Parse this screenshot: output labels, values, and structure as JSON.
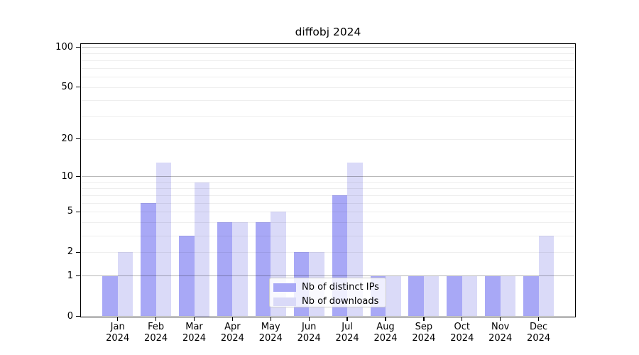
{
  "title": "diffobj 2024",
  "chart_data": {
    "type": "bar",
    "title": "diffobj 2024",
    "categories": [
      "Jan",
      "Feb",
      "Mar",
      "Apr",
      "May",
      "Jun",
      "Jul",
      "Aug",
      "Sep",
      "Oct",
      "Nov",
      "Dec"
    ],
    "year_label": "2024",
    "series": [
      {
        "name": "Nb of distinct IPs",
        "color": "#a8a8f6",
        "values": [
          1,
          6,
          3,
          4,
          4,
          2,
          7,
          1,
          1,
          1,
          1,
          1
        ]
      },
      {
        "name": "Nb of downloads",
        "color": "#dadaf8",
        "values": [
          2,
          13,
          9,
          4,
          5,
          2,
          13,
          1,
          1,
          1,
          1,
          3
        ]
      }
    ],
    "yscale": "log1p",
    "ylim": [
      0,
      100
    ],
    "y_ticks": [
      0,
      1,
      2,
      5,
      10,
      20,
      50,
      100
    ],
    "major_gridlines": [
      1,
      10,
      100
    ],
    "minor_gridlines": [
      2,
      3,
      4,
      5,
      6,
      7,
      8,
      9,
      20,
      30,
      40,
      50,
      60,
      70,
      80,
      90
    ],
    "grid": true,
    "legend_position": "lower center"
  }
}
